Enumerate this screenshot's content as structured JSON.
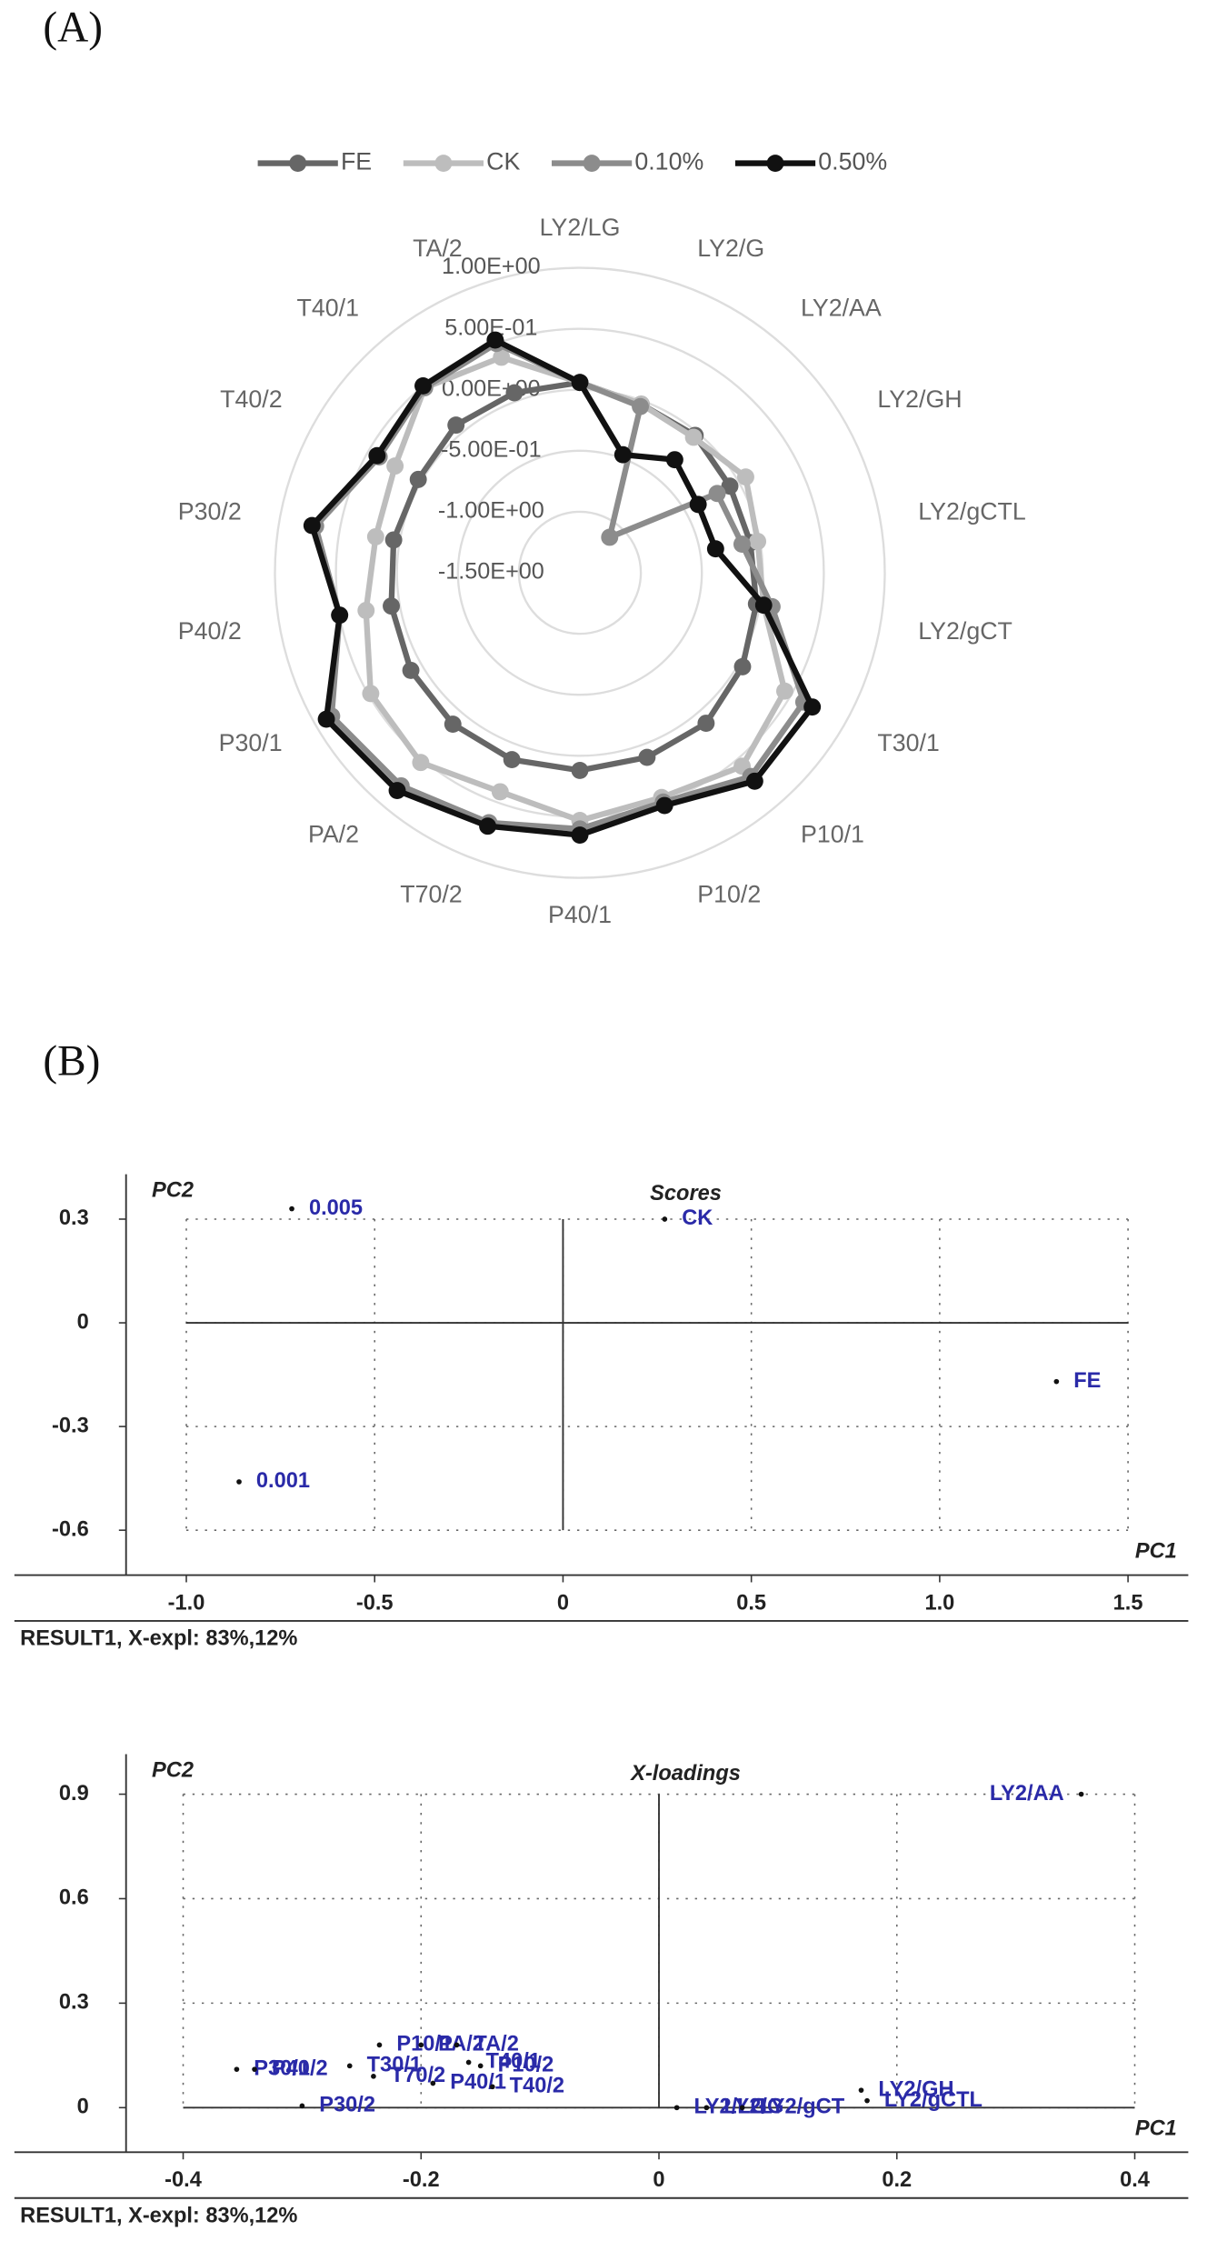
{
  "panel_labels": [
    "(A)",
    "(B)"
  ],
  "chart_data": [
    {
      "type": "radar",
      "categories": [
        "LY2/LG",
        "LY2/G",
        "LY2/AA",
        "LY2/GH",
        "LY2/gCTL",
        "LY2/gCT",
        "T30/1",
        "P10/1",
        "P10/2",
        "P40/1",
        "T70/2",
        "PA/2",
        "P30/1",
        "P40/2",
        "P30/2",
        "T40/2",
        "T40/1",
        "TA/2"
      ],
      "series": [
        {
          "name": "FE",
          "color": "#666666",
          "values": [
            0.06,
            -0.03,
            -0.03,
            -0.08,
            -0.08,
            -0.03,
            0.04,
            0.11,
            0.11,
            0.12,
            0.13,
            0.12,
            0.1,
            0.07,
            0.05,
            0.03,
            0.08,
            0.07
          ]
        },
        {
          "name": "CK",
          "color": "#bdbdbd",
          "values": [
            0.06,
            -0.03,
            -0.05,
            0.07,
            -0.02,
            0.03,
            0.44,
            0.57,
            0.46,
            0.53,
            0.41,
            0.53,
            0.48,
            0.28,
            0.2,
            0.25,
            0.48,
            0.38
          ]
        },
        {
          "name": "0.10%",
          "color": "#8c8c8c",
          "values": [
            0.06,
            -0.05,
            -1.12,
            -0.2,
            -0.15,
            0.1,
            0.62,
            0.68,
            0.5,
            0.6,
            0.68,
            0.78,
            0.85,
            0.5,
            0.7,
            0.4,
            0.48,
            0.5
          ]
        },
        {
          "name": "0.50%",
          "color": "#111111",
          "values": [
            0.06,
            -0.47,
            -0.29,
            -0.38,
            -0.37,
            0.03,
            0.7,
            0.73,
            0.53,
            0.65,
            0.71,
            0.83,
            0.9,
            0.5,
            0.73,
            0.42,
            0.5,
            0.53
          ]
        }
      ],
      "rlim": [
        -1.5,
        1
      ],
      "rticks": [
        {
          "value": 1,
          "label": "1.00E+00"
        },
        {
          "value": 0.5,
          "label": "5.00E-01"
        },
        {
          "value": 0,
          "label": "0.00E+00"
        },
        {
          "value": -0.5,
          "label": "-5.00E-01"
        },
        {
          "value": -1,
          "label": "-1.00E+00"
        },
        {
          "value": -1.5,
          "label": "-1.50E+00"
        }
      ],
      "legend": "top"
    },
    {
      "type": "scatter",
      "title": "Scores",
      "x_label": "PC1",
      "y_label": "PC2",
      "footer": "RESULT1, X-expl: 83%,12%",
      "point_labels": [
        "0.005",
        "CK",
        "FE",
        "0.001"
      ],
      "x": [
        -0.72,
        0.27,
        1.31,
        -0.86
      ],
      "values": [
        0.33,
        0.3,
        -0.17,
        -0.46
      ],
      "color": "#2a2aa8",
      "xlim": [
        -1.16,
        1.66
      ],
      "ylim": [
        -0.73,
        0.43
      ],
      "xticks": [
        {
          "value": -1,
          "label": "-1.0"
        },
        -0.5,
        0,
        0.5,
        {
          "value": 1,
          "label": "1.0"
        },
        1.5
      ],
      "yticks": [
        0.3,
        0,
        -0.3,
        -0.6
      ],
      "grid": true
    },
    {
      "type": "scatter",
      "title": "X-loadings",
      "x_label": "PC1",
      "y_label": "PC2",
      "footer": "RESULT1, X-expl: 83%,12%",
      "point_labels": [
        "P30/2",
        "P30/1",
        "P40/2",
        "T30/1",
        "T70/2",
        "P10/1",
        "PA/2",
        "TA/2",
        "P40/1",
        "P10/2",
        "T40/2",
        "T40/1",
        "LY2/LG",
        "LY2/G",
        "LY2/gCT",
        "LY2/GH",
        "LY2/gCTL",
        "LY2/AA"
      ],
      "x": [
        -0.3,
        -0.355,
        -0.34,
        -0.26,
        -0.24,
        -0.235,
        -0.2,
        -0.17,
        -0.19,
        -0.15,
        -0.14,
        -0.16,
        0.015,
        0.04,
        0.07,
        0.17,
        0.175,
        0.355
      ],
      "values": [
        0.005,
        0.11,
        0.11,
        0.12,
        0.09,
        0.18,
        0.18,
        0.18,
        0.07,
        0.12,
        0.06,
        0.13,
        0,
        0,
        0,
        0.05,
        0.02,
        0.9
      ],
      "color": "#2a2aa8",
      "xlim": [
        -0.448,
        0.445
      ],
      "ylim": [
        -0.128,
        1.015
      ],
      "xticks": [
        -0.4,
        -0.2,
        0,
        0.2,
        0.4
      ],
      "yticks": [
        0.9,
        0.6,
        0.3,
        0
      ],
      "grid": true
    }
  ]
}
